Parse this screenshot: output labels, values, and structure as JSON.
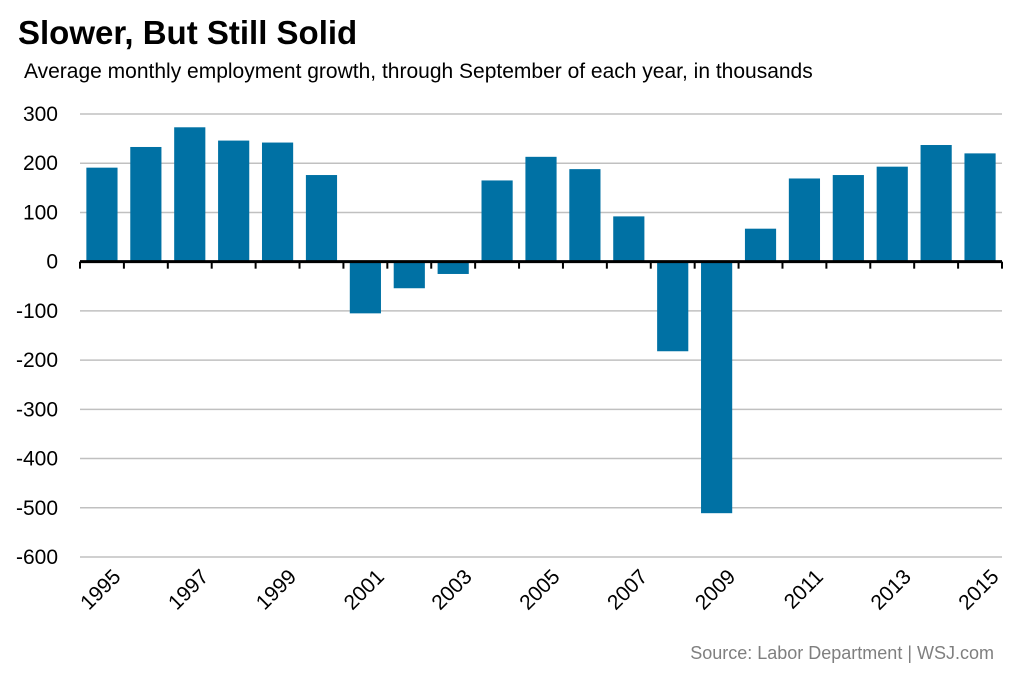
{
  "title": "Slower, But Still Solid",
  "subtitle": "Average monthly employment growth, through September of each year, in thousands",
  "source": "Source: Labor Department  |  WSJ.com",
  "colors": {
    "bar": "#0071a4",
    "grid": "#c0c0c0",
    "axis": "#000000",
    "source_text": "#7f7f7f"
  },
  "chart_data": {
    "type": "bar",
    "categories": [
      "1995",
      "1996",
      "1997",
      "1998",
      "1999",
      "2000",
      "2001",
      "2002",
      "2003",
      "2004",
      "2005",
      "2006",
      "2007",
      "2008",
      "2009",
      "2010",
      "2011",
      "2012",
      "2013",
      "2014",
      "2015"
    ],
    "x_tick_labels": [
      "1995",
      "",
      "1997",
      "",
      "1999",
      "",
      "2001",
      "",
      "2003",
      "",
      "2005",
      "",
      "2007",
      "",
      "2009",
      "",
      "2011",
      "",
      "2013",
      "",
      "2015"
    ],
    "values": [
      191,
      233,
      273,
      246,
      242,
      176,
      -105,
      -54,
      -25,
      165,
      213,
      188,
      92,
      -182,
      -511,
      67,
      169,
      176,
      193,
      237,
      220
    ],
    "yticks": [
      300,
      200,
      100,
      0,
      -100,
      -200,
      -300,
      -400,
      -500,
      -600
    ],
    "ylim": [
      -600,
      300
    ],
    "grid": true,
    "xlabel": "",
    "ylabel": ""
  }
}
